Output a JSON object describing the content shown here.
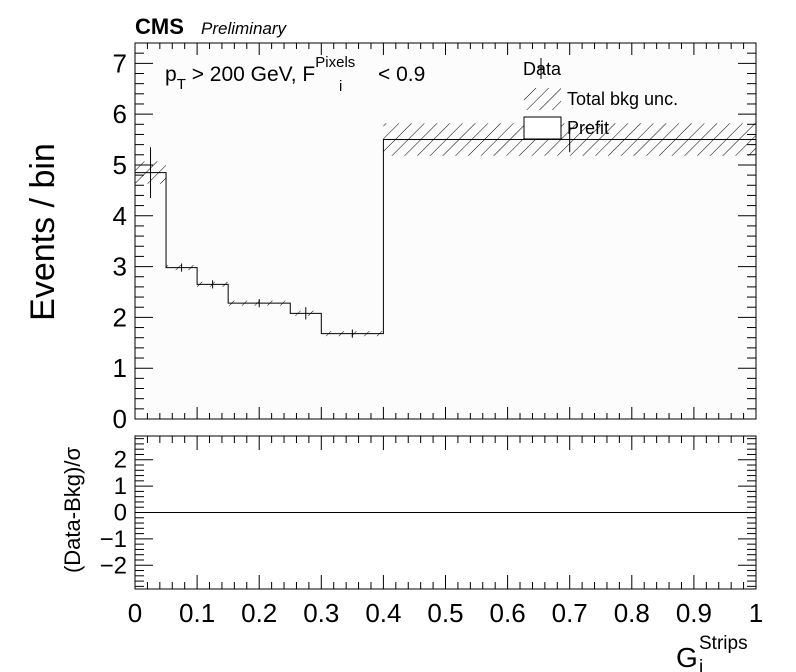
{
  "header": {
    "experiment": "CMS",
    "status": "Preliminary"
  },
  "annotation": {
    "pt_p": "p",
    "pt_sub": "T",
    "pt_rest": " > 200 GeV, F",
    "f_sup": "Pixels",
    "f_sub": "i",
    "f_rest": " < 0.9"
  },
  "legend": {
    "placement": "top-right",
    "data_label": "Data",
    "unc_label": "Total bkg unc.",
    "prefit_label": "Prefit"
  },
  "chart_data": [
    {
      "type": "histogram",
      "ylabel": "Events / bin",
      "ylim": [
        0,
        7.4
      ],
      "yticks": [
        "0",
        "1",
        "2",
        "3",
        "4",
        "5",
        "6",
        "7"
      ],
      "xlim": [
        0,
        1
      ],
      "bin_edges": [
        0,
        0.05,
        0.1,
        0.15,
        0.25,
        0.3,
        0.4,
        1.0
      ],
      "prefit_values": [
        4.85,
        2.98,
        2.65,
        2.28,
        2.08,
        1.68,
        5.5
      ],
      "unc_half_width": [
        0.22,
        0.05,
        0.05,
        0.05,
        0.05,
        0.05,
        0.32
      ],
      "data": [
        {
          "x": 0.025,
          "y": 4.85,
          "yerr": 0.5
        },
        {
          "x": 0.075,
          "y": 2.98,
          "yerr": 0.08
        },
        {
          "x": 0.125,
          "y": 2.65,
          "yerr": 0.08
        },
        {
          "x": 0.2,
          "y": 2.28,
          "yerr": 0.08
        },
        {
          "x": 0.275,
          "y": 2.08,
          "yerr": 0.12
        },
        {
          "x": 0.35,
          "y": 1.68,
          "yerr": 0.08
        },
        {
          "x": 0.7,
          "y": 5.5,
          "yerr": 0.25
        }
      ]
    },
    {
      "type": "line",
      "ylabel": "(Data-Bkg)/σ",
      "ylim": [
        -2.9,
        2.9
      ],
      "yticks": [
        "−2",
        "−1",
        "0",
        "1",
        "2"
      ],
      "reference_line": 0,
      "xlabel_main": "G",
      "xlabel_sub": "i",
      "xlabel_sup": "Strips",
      "xticks": [
        "0",
        "0.1",
        "0.2",
        "0.3",
        "0.4",
        "0.5",
        "0.6",
        "0.7",
        "0.8",
        "0.9",
        "1"
      ]
    }
  ]
}
